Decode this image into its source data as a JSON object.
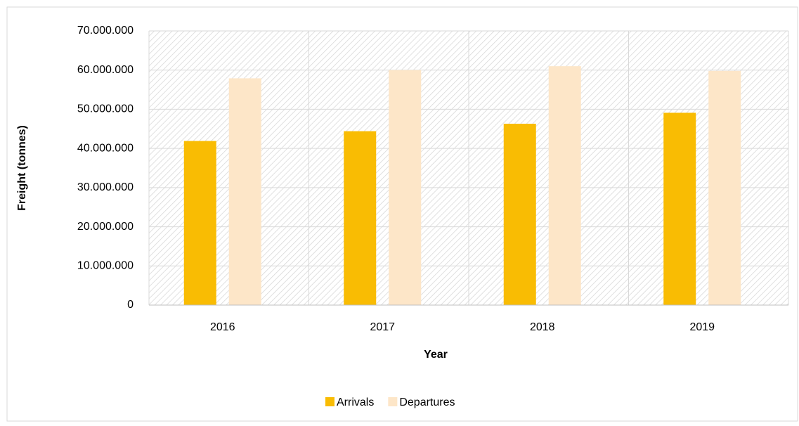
{
  "chart_data": {
    "type": "bar",
    "categories": [
      "2016",
      "2017",
      "2018",
      "2019"
    ],
    "series": [
      {
        "name": "Arrivals",
        "color": "#f9bc03",
        "values": [
          41900000,
          44400000,
          46300000,
          49100000
        ]
      },
      {
        "name": "Departures",
        "color": "#fde6c8",
        "values": [
          57900000,
          60000000,
          61000000,
          59800000
        ]
      }
    ],
    "ylim": [
      0,
      70000000
    ],
    "yticks": [
      0,
      {
        "value": 10000000,
        "label": "10.000.000"
      },
      {
        "value": 20000000,
        "label": "20.000.000"
      },
      {
        "value": 30000000,
        "label": "30.000.000"
      },
      {
        "value": 40000000,
        "label": "40.000.000"
      },
      {
        "value": 50000000,
        "label": "50.000.000"
      },
      {
        "value": 60000000,
        "label": "60.000.000"
      },
      {
        "value": 70000000,
        "label": "70.000.000"
      }
    ],
    "xlabel": "Year",
    "ylabel": "Freight (tonnes)",
    "grid": true,
    "legend": "bottom"
  }
}
